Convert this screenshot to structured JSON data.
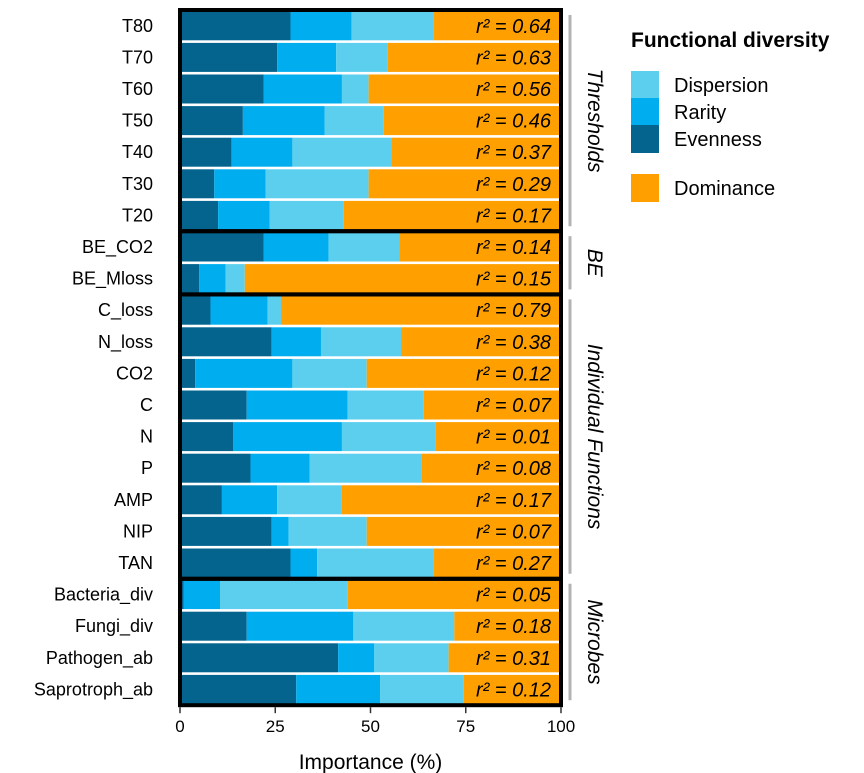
{
  "chart_data": {
    "type": "bar",
    "orientation": "horizontal",
    "stacked": true,
    "categories": [
      "T80",
      "T70",
      "T60",
      "T50",
      "T40",
      "T30",
      "T20",
      "BE_CO2",
      "BE_Mloss",
      "C_loss",
      "N_loss",
      "CO2",
      "C",
      "N",
      "P",
      "AMP",
      "NIP",
      "TAN",
      "Bacteria_div",
      "Fungi_div",
      "Pathogen_ab",
      "Saprotroph_ab"
    ],
    "series": [
      {
        "name": "Evenness",
        "color": "#04648e",
        "values": [
          29,
          25.5,
          22,
          16.5,
          13.5,
          9,
          10,
          22,
          5,
          8,
          24,
          4,
          17.5,
          14,
          18.5,
          11,
          24,
          29,
          1,
          17.5,
          41.5,
          30.5
        ]
      },
      {
        "name": "Rarity",
        "color": "#00aeef",
        "values": [
          16,
          15.5,
          20.5,
          21.5,
          16,
          13.5,
          13.5,
          17,
          7,
          15,
          13,
          25.5,
          26.5,
          28.5,
          15.5,
          14.5,
          4.5,
          7,
          9.5,
          28,
          9.5,
          22
        ]
      },
      {
        "name": "Dispersion",
        "color": "#5bcfed",
        "values": [
          21.5,
          13.5,
          7,
          15.5,
          26,
          27,
          19.5,
          18.5,
          5,
          3.5,
          21,
          19.5,
          20,
          24.5,
          29.5,
          17,
          20.5,
          30.5,
          33.5,
          26.5,
          19.5,
          22
        ]
      },
      {
        "name": "Dominance",
        "color": "#ffa000",
        "values": [
          33.5,
          45.5,
          50.5,
          46.5,
          44.5,
          50.5,
          57,
          42.5,
          83,
          73.5,
          42,
          51,
          36,
          33,
          36.5,
          57.5,
          51,
          33.5,
          56,
          28,
          29.5,
          25.5
        ]
      }
    ],
    "r2_labels": [
      "r² = 0.64",
      "r² = 0.63",
      "r² = 0.56",
      "r² = 0.46",
      "r² = 0.37",
      "r² = 0.29",
      "r² = 0.17",
      "r² = 0.14",
      "r² = 0.15",
      "r² = 0.79",
      "r² = 0.38",
      "r² = 0.12",
      "r² = 0.07",
      "r² = 0.01",
      "r² = 0.08",
      "r² = 0.17",
      "r² = 0.07",
      "r² = 0.27",
      "r² = 0.05",
      "r² = 0.18",
      "r² = 0.31",
      "r² = 0.12"
    ],
    "groups": [
      {
        "name": "Thresholds",
        "start": 0,
        "end": 6
      },
      {
        "name": "BE",
        "start": 7,
        "end": 8
      },
      {
        "name": "Individual Functions",
        "start": 9,
        "end": 17
      },
      {
        "name": "Microbes",
        "start": 18,
        "end": 21
      }
    ],
    "xlabel": "Importance (%)",
    "xlim": [
      0,
      100
    ],
    "xticks": [
      0,
      25,
      50,
      75,
      100
    ],
    "legend": {
      "title": "Functional diversity",
      "position": "right",
      "entries": [
        "Dispersion",
        "Rarity",
        "Evenness",
        "Dominance"
      ]
    }
  }
}
